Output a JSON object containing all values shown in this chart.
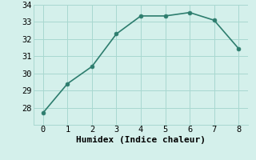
{
  "x": [
    0,
    1,
    2,
    3,
    4,
    5,
    6,
    7,
    8
  ],
  "y": [
    27.7,
    29.4,
    30.4,
    32.3,
    33.35,
    33.35,
    33.55,
    33.1,
    31.45
  ],
  "line_color": "#2d7d6e",
  "marker_color": "#2d7d6e",
  "background_color": "#d4f0eb",
  "grid_color": "#a8d8d0",
  "xlabel": "Humidex (Indice chaleur)",
  "xlim": [
    -0.4,
    8.4
  ],
  "ylim": [
    27.0,
    34.0
  ],
  "yticks": [
    28,
    29,
    30,
    31,
    32,
    33,
    34
  ],
  "xticks": [
    0,
    1,
    2,
    3,
    4,
    5,
    6,
    7,
    8
  ],
  "tick_fontsize": 7.5,
  "xlabel_fontsize": 8,
  "linewidth": 1.2,
  "markersize": 3.5
}
